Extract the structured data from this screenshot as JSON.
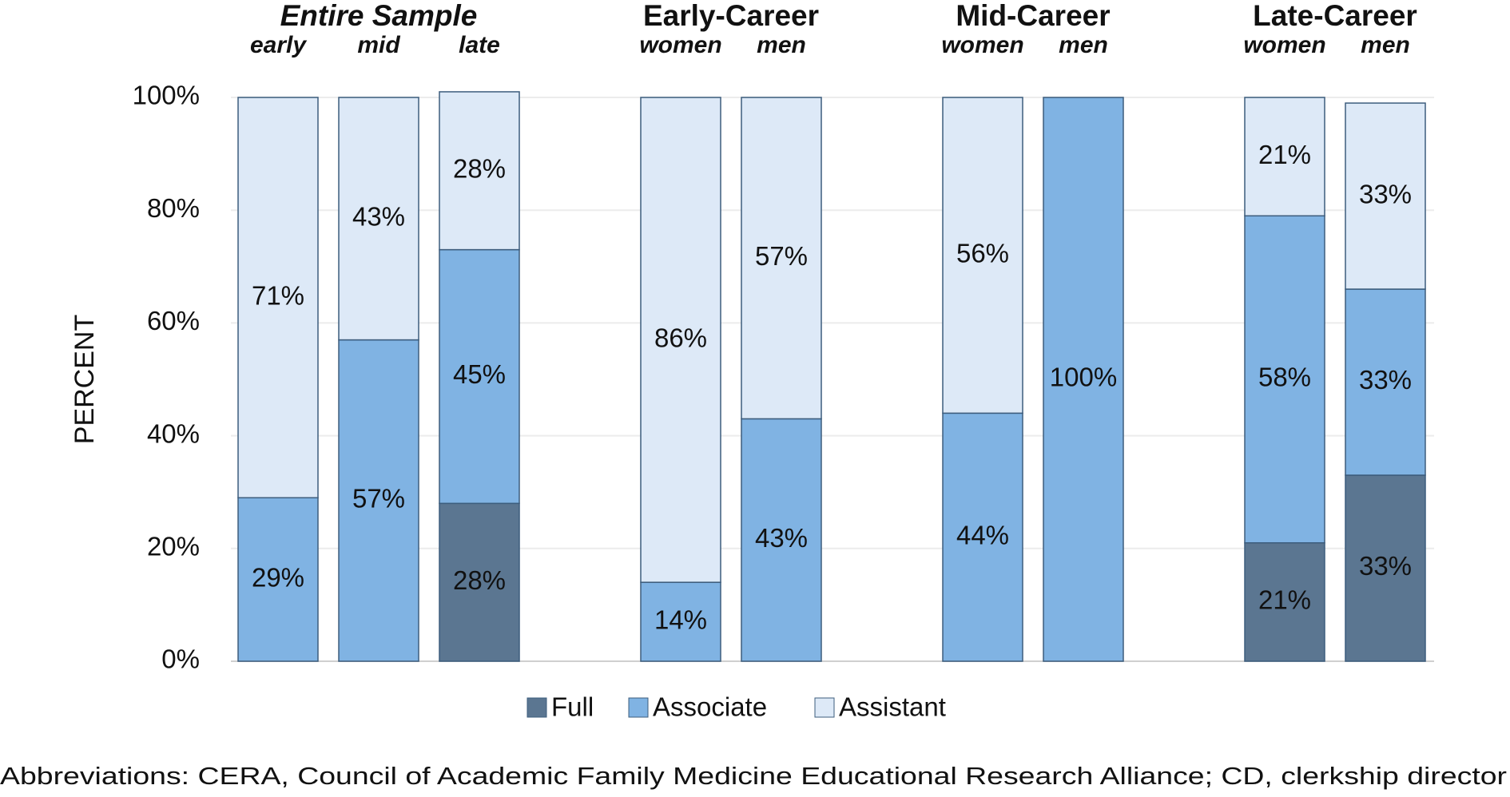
{
  "chart_data": {
    "type": "stacked-bar",
    "groups": [
      {
        "name": "Entire Sample",
        "categories": [
          "early",
          "mid",
          "late"
        ]
      },
      {
        "name": "Early-Career",
        "categories": [
          "women",
          "men"
        ]
      },
      {
        "name": "Mid-Career",
        "categories": [
          "women",
          "men"
        ]
      },
      {
        "name": "Late-Career",
        "categories": [
          "women",
          "men"
        ]
      }
    ],
    "series": [
      {
        "name": "Full",
        "color": "#5b7691",
        "values": [
          null,
          null,
          28,
          null,
          null,
          null,
          null,
          21,
          33
        ],
        "value_labels": [
          null,
          null,
          "28%",
          null,
          null,
          null,
          null,
          "21%",
          "33%"
        ]
      },
      {
        "name": "Associate",
        "color": "#80b3e3",
        "values": [
          29,
          57,
          45,
          14,
          43,
          44,
          100,
          58,
          33
        ],
        "value_labels": [
          "29%",
          "57%",
          "45%",
          "14%",
          "43%",
          "44%",
          "100%",
          "58%",
          "33%"
        ]
      },
      {
        "name": "Assistant",
        "color": "#dde9f7",
        "values": [
          71,
          43,
          28,
          86,
          57,
          56,
          null,
          21,
          33
        ],
        "value_labels": [
          "71%",
          "43%",
          "28%",
          "86%",
          "57%",
          "56%",
          null,
          "21%",
          "33%"
        ]
      }
    ],
    "ylabel": "PERCENT",
    "ylim": [
      0,
      100
    ],
    "yticks": [
      {
        "value": 0,
        "label": "0%"
      },
      {
        "value": 20,
        "label": "20%"
      },
      {
        "value": 40,
        "label": "40%"
      },
      {
        "value": 60,
        "label": "60%"
      },
      {
        "value": 80,
        "label": "80%"
      },
      {
        "value": 100,
        "label": "100%"
      }
    ],
    "grid": true,
    "legend": "bottom",
    "footnote": "Abbreviations: CERA, Council of Academic Family Medicine Educational Research Alliance; CD, clerkship director"
  }
}
